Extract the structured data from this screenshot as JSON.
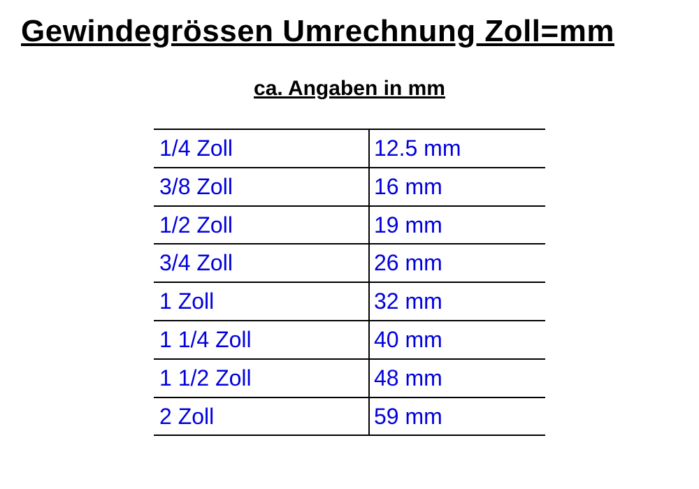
{
  "title": "Gewindegrössen Umrechnung Zoll=mm",
  "subtitle": "ca. Angaben in mm",
  "conversion_table": {
    "type": "table",
    "columns": [
      "zoll",
      "mm"
    ],
    "text_color": "#0000dd",
    "border_color": "#000000",
    "border_width": 2,
    "background_color": "#ffffff",
    "cell_fontsize": 32,
    "title_fontsize": 44,
    "subtitle_fontsize": 30,
    "column_widths": [
      "55%",
      "45%"
    ],
    "rows": [
      {
        "zoll": "1/4 Zoll",
        "mm": "12.5 mm"
      },
      {
        "zoll": "3/8 Zoll",
        "mm": "16 mm"
      },
      {
        "zoll": "1/2 Zoll",
        "mm": "19 mm"
      },
      {
        "zoll": "3/4 Zoll",
        "mm": "26 mm"
      },
      {
        "zoll": "1 Zoll",
        "mm": "32 mm"
      },
      {
        "zoll": "1 1/4 Zoll",
        "mm": "40 mm"
      },
      {
        "zoll": "1 1/2 Zoll",
        "mm": "48 mm"
      },
      {
        "zoll": "2 Zoll",
        "mm": "59 mm"
      }
    ]
  }
}
